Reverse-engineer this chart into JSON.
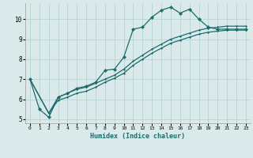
{
  "xlabel": "Humidex (Indice chaleur)",
  "background_color": "#daeaea",
  "grid_color": "#b8d4d4",
  "line_color": "#1e6b6b",
  "xlim": [
    -0.5,
    23.5
  ],
  "ylim": [
    4.8,
    10.8
  ],
  "yticks": [
    5,
    6,
    7,
    8,
    9,
    10
  ],
  "xticks": [
    0,
    1,
    2,
    3,
    4,
    5,
    6,
    7,
    8,
    9,
    10,
    11,
    12,
    13,
    14,
    15,
    16,
    17,
    18,
    19,
    20,
    21,
    22,
    23
  ],
  "series1_x": [
    0,
    1,
    2,
    3,
    4,
    5,
    6,
    7,
    8,
    9,
    10,
    11,
    12,
    13,
    14,
    15,
    16,
    17,
    18,
    19,
    20,
    21,
    22,
    23
  ],
  "series1_y": [
    7.0,
    5.5,
    5.1,
    6.1,
    6.3,
    6.55,
    6.65,
    6.85,
    7.45,
    7.5,
    8.1,
    9.5,
    9.6,
    10.1,
    10.45,
    10.6,
    10.3,
    10.5,
    10.0,
    9.6,
    9.5,
    9.5,
    9.5,
    9.5
  ],
  "series2_x": [
    0,
    2,
    3,
    4,
    5,
    6,
    7,
    8,
    9,
    10,
    11,
    12,
    13,
    14,
    15,
    16,
    17,
    18,
    19,
    20,
    21,
    22,
    23
  ],
  "series2_y": [
    7.0,
    5.3,
    6.1,
    6.3,
    6.5,
    6.6,
    6.8,
    7.0,
    7.2,
    7.5,
    7.9,
    8.2,
    8.5,
    8.75,
    9.0,
    9.15,
    9.3,
    9.45,
    9.55,
    9.6,
    9.65,
    9.65,
    9.65
  ],
  "series3_x": [
    0,
    2,
    3,
    4,
    5,
    6,
    7,
    8,
    9,
    10,
    11,
    12,
    13,
    14,
    15,
    16,
    17,
    18,
    19,
    20,
    21,
    22,
    23
  ],
  "series3_y": [
    7.0,
    5.3,
    5.95,
    6.1,
    6.3,
    6.4,
    6.6,
    6.85,
    7.05,
    7.3,
    7.7,
    8.0,
    8.3,
    8.55,
    8.8,
    8.95,
    9.1,
    9.25,
    9.35,
    9.4,
    9.45,
    9.45,
    9.45
  ]
}
